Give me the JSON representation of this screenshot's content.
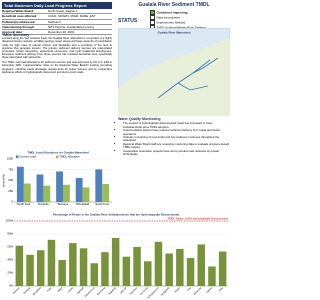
{
  "header": {
    "title": "Total Maximum Daily Load Progress Report",
    "rows": [
      [
        "Regional Water Board:",
        "North Coast, Region 1"
      ],
      [
        "Beneficial uses affected:",
        "COLD, SPAWN, MIGR, RARE, EST"
      ],
      [
        "Pollutant(s) addressed:",
        "Sediment"
      ],
      [
        "Implementing through:",
        "NPS Permits, Sustainable Forestry"
      ],
      [
        "Approval date:",
        "December 20, 2001"
      ]
    ]
  },
  "report_title": "Gualala River Sediment TMDL",
  "status": {
    "label": "STATUS",
    "options": [
      {
        "label": "Conditions Improving",
        "checked": true
      },
      {
        "label": "Data Inconclusive",
        "checked": false
      },
      {
        "label": "Improvement Needed",
        "checked": false
      },
      {
        "label": "TMDL Achieved/Water Body Delisted",
        "checked": false
      }
    ]
  },
  "map": {
    "title": "Gualala River Watershed"
  },
  "summary": {
    "heading": "TMDL Summary",
    "paragraphs": [
      "Located along the San Andreas Fault, the Gualala River watershed is comprised of a highly dissected stream network, erodible geology, steep slopes and large amounts of precipitation make for high rates of natural erosion and landslides and a sensitivity of the land to practices that generate erosion. The primary sediment delivery sources are road-related processes, timber harvesting, agricultural conversion, and rural residential development. Excessive sediment delivery from these sources has impaired beneficial uses, specifically those associated with salmonids.",
      "The TMDL sets load allocations for sediment sources and was approved by the U.S. EPA in December 2001. Implementation relies on the Regional Water Board's existing permitting programs, including waste discharge requirements for timber harvest, and on cooperative landowner efforts to hydrologically disconnect and storm-proof roads."
    ]
  },
  "monitoring": {
    "heading": "Water Quality Monitoring",
    "bullets": [
      "The percent of hydrologically disconnected roads has increased in many subwatersheds since TMDL adoption.",
      "Implementation actions have reduced sediment delivery from roads and timber operations.",
      "Instream monitoring of pool depth and fine sediment continues throughout the watershed.",
      "Regional Water Board staff are reviewing monitoring data to evaluate progress toward TMDL targets.",
      "Cooperative restoration projects have storm-proofed road networks on private timberlands."
    ]
  },
  "charts": [
    {
      "type": "bar",
      "title": "TMDL Load Allocations for Gualala Watershed",
      "y_label": "tons/mi²/yr",
      "categories": [
        "North Fork",
        "Rockpile",
        "Buckeye",
        "Wheatfield",
        "South Fork"
      ],
      "series": [
        {
          "name": "Current Load",
          "color": "#4f81bd",
          "values": [
            820,
            640,
            710,
            560,
            760
          ]
        },
        {
          "name": "TMDL Allocation",
          "color": "#9bbb59",
          "values": [
            430,
            380,
            400,
            340,
            420
          ]
        }
      ],
      "ylim": [
        0,
        1000
      ],
      "yticks": [
        0,
        250,
        500,
        750,
        1000
      ],
      "grid": true
    },
    {
      "type": "bar",
      "title": "Percentage of Roads in the Gualala River Subwatersheds that are Hydrologically Disconnected",
      "categories": [
        "Buckeye",
        "Rockpile",
        "Wheatfield",
        "Fuller",
        "Haupt",
        "House",
        "Marshall",
        "Pepperwood",
        "Rancheria",
        "Sugarloaf",
        "Little NF",
        "Robinson",
        "Dry Creek",
        "Big Pepperwood",
        "Hedgepeth",
        "Tombs",
        "Doty",
        "McKenzie",
        "Palmer",
        "Kelly"
      ],
      "series": [
        {
          "name": "Hydrologically Disconnected",
          "color": "#77933c",
          "values": [
            62,
            48,
            55,
            71,
            40,
            66,
            58,
            35,
            52,
            74,
            45,
            60,
            38,
            68,
            50,
            57,
            43,
            64,
            30,
            53
          ]
        }
      ],
      "ylim": [
        0,
        100
      ],
      "yticks": [
        {
          "value": 0,
          "label": "0%"
        },
        {
          "value": 20,
          "label": "20%"
        },
        {
          "value": 40,
          "label": "40%"
        },
        {
          "value": 60,
          "label": "60%"
        },
        {
          "value": 80,
          "label": "80%"
        },
        {
          "value": 100,
          "label": "100%"
        }
      ],
      "target": {
        "value": 100,
        "label": "TMDL Target: 100% Hydrologically Disconnected"
      },
      "grid": true
    }
  ]
}
